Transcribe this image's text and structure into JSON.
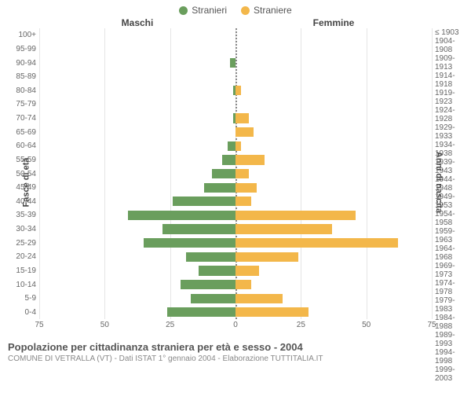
{
  "legend": {
    "male": {
      "label": "Stranieri",
      "color": "#6a9e5d"
    },
    "female": {
      "label": "Straniere",
      "color": "#f3b74a"
    }
  },
  "headers": {
    "left": "Maschi",
    "right": "Femmine"
  },
  "axis_titles": {
    "left": "Fasce di età",
    "right": "Anni di nascita"
  },
  "chart": {
    "xmax": 75,
    "xticks": [
      75,
      50,
      25,
      0,
      25,
      50,
      75
    ],
    "grid_positions_pct": [
      0,
      16.667,
      33.333,
      50,
      66.667,
      83.333,
      100
    ],
    "grid_color": "#e5e5e5",
    "bar_height_ratio": 0.7,
    "rows": [
      {
        "age": "100+",
        "birth": "≤ 1903",
        "m": 0,
        "f": 0
      },
      {
        "age": "95-99",
        "birth": "1904-1908",
        "m": 0,
        "f": 0
      },
      {
        "age": "90-94",
        "birth": "1909-1913",
        "m": 2,
        "f": 0
      },
      {
        "age": "85-89",
        "birth": "1914-1918",
        "m": 0,
        "f": 0
      },
      {
        "age": "80-84",
        "birth": "1919-1923",
        "m": 1,
        "f": 2
      },
      {
        "age": "75-79",
        "birth": "1924-1928",
        "m": 0,
        "f": 0
      },
      {
        "age": "70-74",
        "birth": "1929-1933",
        "m": 1,
        "f": 5
      },
      {
        "age": "65-69",
        "birth": "1934-1938",
        "m": 0,
        "f": 7
      },
      {
        "age": "60-64",
        "birth": "1939-1943",
        "m": 3,
        "f": 2
      },
      {
        "age": "55-59",
        "birth": "1944-1948",
        "m": 5,
        "f": 11
      },
      {
        "age": "50-54",
        "birth": "1949-1953",
        "m": 9,
        "f": 5
      },
      {
        "age": "45-49",
        "birth": "1954-1958",
        "m": 12,
        "f": 8
      },
      {
        "age": "40-44",
        "birth": "1959-1963",
        "m": 24,
        "f": 6
      },
      {
        "age": "35-39",
        "birth": "1964-1968",
        "m": 41,
        "f": 46
      },
      {
        "age": "30-34",
        "birth": "1969-1973",
        "m": 28,
        "f": 37
      },
      {
        "age": "25-29",
        "birth": "1974-1978",
        "m": 35,
        "f": 62
      },
      {
        "age": "20-24",
        "birth": "1979-1983",
        "m": 19,
        "f": 24
      },
      {
        "age": "15-19",
        "birth": "1984-1988",
        "m": 14,
        "f": 9
      },
      {
        "age": "10-14",
        "birth": "1989-1993",
        "m": 21,
        "f": 6
      },
      {
        "age": "5-9",
        "birth": "1994-1998",
        "m": 17,
        "f": 18
      },
      {
        "age": "0-4",
        "birth": "1999-2003",
        "m": 26,
        "f": 28
      }
    ]
  },
  "footer": {
    "title": "Popolazione per cittadinanza straniera per età e sesso - 2004",
    "subtitle": "COMUNE DI VETRALLA (VT) - Dati ISTAT 1° gennaio 2004 - Elaborazione TUTTITALIA.IT"
  }
}
